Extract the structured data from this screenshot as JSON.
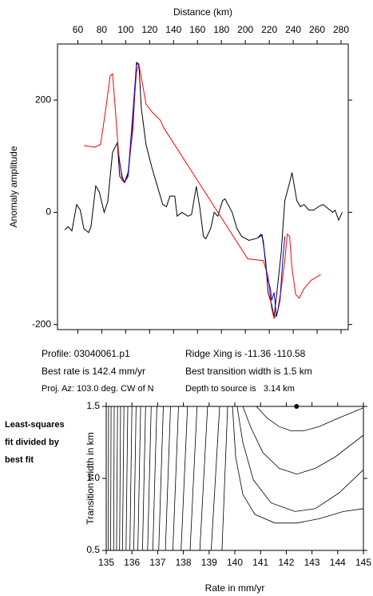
{
  "chart_data": [
    {
      "type": "line",
      "xlabel": "Distance (km)",
      "ylabel": "Anomaly amplitude",
      "xlim": [
        43,
        286
      ],
      "ylim": [
        -209,
        300
      ],
      "xticks": [
        60,
        80,
        100,
        120,
        140,
        160,
        180,
        200,
        220,
        240,
        260,
        280
      ],
      "yticks": [
        -200,
        0,
        200
      ],
      "series": [
        {
          "color": "#000000",
          "x": [
            49,
            52,
            55,
            59,
            62,
            65,
            69,
            71,
            75,
            78,
            82,
            85,
            89,
            93,
            95,
            99,
            102,
            106,
            109,
            111,
            113,
            117,
            122,
            127,
            131,
            134,
            137,
            141,
            143,
            147,
            152,
            155,
            159,
            162,
            165,
            167,
            171,
            174,
            177,
            181,
            183,
            189,
            193,
            197,
            203,
            210,
            214,
            217,
            219,
            222,
            224,
            226,
            230,
            233,
            237,
            239,
            243,
            246,
            249,
            253,
            257,
            261,
            265,
            269,
            273,
            275,
            278,
            281
          ],
          "values": [
            -31,
            -26,
            -33,
            14,
            4,
            -29,
            -36,
            -26,
            47,
            36,
            0,
            19,
            107,
            124,
            64,
            53,
            71,
            150,
            267,
            264,
            186,
            121,
            79,
            43,
            14,
            10,
            29,
            29,
            -7,
            0,
            -7,
            -4,
            46,
            7,
            -43,
            -47,
            -29,
            0,
            -7,
            21,
            24,
            0,
            -29,
            -43,
            -50,
            -46,
            -40,
            -86,
            -143,
            -164,
            -186,
            -150,
            -71,
            21,
            53,
            71,
            21,
            10,
            14,
            4,
            4,
            10,
            14,
            7,
            0,
            4,
            -14,
            0
          ]
        },
        {
          "color": "#ff0000",
          "x": [
            65,
            74,
            79,
            83,
            87,
            89,
            91,
            94,
            97,
            99,
            102,
            105,
            109,
            111,
            114,
            117,
            122,
            129,
            132,
            202,
            215,
            219,
            222,
            224,
            227,
            230,
            233,
            235,
            237,
            239,
            242,
            245,
            249,
            255,
            263
          ],
          "values": [
            119,
            116,
            121,
            179,
            243,
            247,
            193,
            107,
            57,
            53,
            64,
            136,
            250,
            264,
            229,
            193,
            179,
            164,
            150,
            -83,
            -86,
            -114,
            -171,
            -189,
            -176,
            -136,
            -86,
            -39,
            -43,
            -100,
            -146,
            -153,
            -136,
            -121,
            -111
          ]
        },
        {
          "color": "#0000cc",
          "x": [
            94,
            97,
            99,
            102,
            105,
            109,
            111,
            160,
            210,
            213,
            215,
            218,
            221,
            222,
            224,
            226,
            229,
            231,
            233
          ],
          "values": [
            100,
            64,
            53,
            67,
            150,
            264,
            264,
            null,
            -46,
            -39,
            -50,
            -114,
            -136,
            -157,
            -143,
            -186,
            -157,
            -93,
            -43
          ]
        }
      ]
    },
    {
      "type": "contour",
      "xlabel": "Rate in mm/yr",
      "ylabel": "Transition width in km",
      "xlim": [
        135,
        145
      ],
      "ylim": [
        0.5,
        1.5
      ],
      "xticks": [
        135,
        136,
        137,
        138,
        139,
        140,
        141,
        142,
        143,
        144,
        145
      ],
      "yticks": [
        0.5,
        {
          "value": 1,
          "label": "1.0"
        },
        1.5
      ],
      "color": "#000000",
      "best_fit": {
        "x": 142.4,
        "y": 1.5
      },
      "contours": [
        {
          "x": [
            135.09,
            135.08
          ],
          "y": [
            1.5,
            0.5
          ]
        },
        {
          "x": [
            135.19,
            135.17
          ],
          "y": [
            1.5,
            0.5
          ]
        },
        {
          "x": [
            135.31,
            135.29
          ],
          "y": [
            1.5,
            0.5
          ]
        },
        {
          "x": [
            135.44,
            135.4
          ],
          "y": [
            1.5,
            0.5
          ]
        },
        {
          "x": [
            135.56,
            135.52
          ],
          "y": [
            1.5,
            0.5
          ]
        },
        {
          "x": [
            135.69,
            135.63
          ],
          "y": [
            1.5,
            0.5
          ]
        },
        {
          "x": [
            135.84,
            135.77
          ],
          "y": [
            1.5,
            0.5
          ]
        },
        {
          "x": [
            136.0,
            135.92
          ],
          "y": [
            1.5,
            0.5
          ]
        },
        {
          "x": [
            136.16,
            136.07
          ],
          "y": [
            1.5,
            0.5
          ]
        },
        {
          "x": [
            136.34,
            136.23
          ],
          "y": [
            1.5,
            0.5
          ]
        },
        {
          "x": [
            136.53,
            136.41
          ],
          "y": [
            1.5,
            0.5
          ]
        },
        {
          "x": [
            136.75,
            136.61
          ],
          "y": [
            1.5,
            0.5
          ]
        },
        {
          "x": [
            136.97,
            136.81
          ],
          "y": [
            1.5,
            0.5
          ]
        },
        {
          "x": [
            137.22,
            137.04
          ],
          "y": [
            1.5,
            0.5
          ]
        },
        {
          "x": [
            137.5,
            137.3
          ],
          "y": [
            1.5,
            0.5
          ]
        },
        {
          "x": [
            137.81,
            137.59
          ],
          "y": [
            1.5,
            0.5
          ]
        },
        {
          "x": [
            138.16,
            137.91
          ],
          "y": [
            1.5,
            0.5
          ]
        },
        {
          "x": [
            138.53,
            138.26
          ],
          "y": [
            1.5,
            0.5
          ]
        },
        {
          "x": [
            138.94,
            138.64
          ],
          "y": [
            1.5,
            0.5
          ]
        },
        {
          "x": [
            139.41,
            139.08
          ],
          "y": [
            1.5,
            0.5
          ]
        },
        {
          "x": [
            139.72,
            139.5
          ],
          "y": [
            1.5,
            0.5
          ]
        },
        {
          "x": [
            139.91,
            140.03,
            140.31,
            140.78,
            141.56,
            142.41,
            143.28,
            144.22,
            145.0
          ],
          "y": [
            1.5,
            1.15,
            0.89,
            0.75,
            0.69,
            0.69,
            0.72,
            0.77,
            0.79
          ]
        },
        {
          "x": [
            140.09,
            140.31,
            140.72,
            141.41,
            142.34,
            143.13,
            144.06,
            145.0
          ],
          "y": [
            1.5,
            1.25,
            0.99,
            0.83,
            0.77,
            0.79,
            0.9,
            1.06
          ]
        },
        {
          "x": [
            140.31,
            140.63,
            141.09,
            141.72,
            142.41,
            143.13,
            143.91,
            145.0
          ],
          "y": [
            1.5,
            1.35,
            1.18,
            1.07,
            1.03,
            1.07,
            1.15,
            1.3
          ]
        },
        {
          "x": [
            140.84,
            141.25,
            141.72,
            142.19,
            142.66,
            143.28,
            143.91,
            145.0
          ],
          "y": [
            1.5,
            1.42,
            1.36,
            1.33,
            1.33,
            1.36,
            1.41,
            1.49
          ]
        }
      ]
    }
  ],
  "info": {
    "profile": "Profile: 03040061.p1",
    "ridge": "Ridge Xing is -11.36 -110.58",
    "rate": "Best rate is 142.4 mm/yr",
    "width": "Best transition width is 1.5 km",
    "azimuth": "Proj. Az: 103.0 deg. CW of N",
    "depth": "Depth to source is   3.14 km"
  },
  "side_label": [
    "Least-squares",
    "fit divided by",
    "best fit"
  ]
}
